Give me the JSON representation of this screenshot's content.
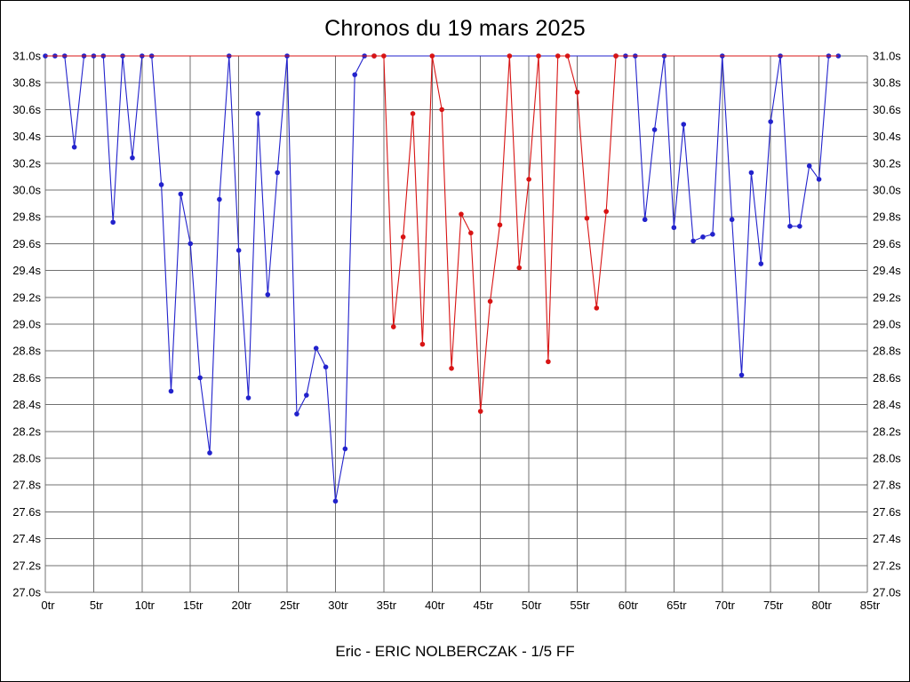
{
  "chart_data": {
    "type": "line",
    "title": "Chronos du 19 mars 2025",
    "subtitle": "Eric - ERIC NOLBERCZAK - 1/5 FF",
    "xlabel": "",
    "ylabel": "",
    "x_unit": "tr",
    "y_unit": "s",
    "xlim": [
      0,
      85
    ],
    "ylim": [
      27.0,
      31.0
    ],
    "grid": true,
    "legend": "none",
    "colors": {
      "grid": "#707070",
      "text": "#000000",
      "blue_series": "#2222cc",
      "red_series": "#d81414"
    },
    "x_ticks": [
      "0tr",
      "5tr",
      "10tr",
      "15tr",
      "20tr",
      "25tr",
      "30tr",
      "35tr",
      "40tr",
      "45tr",
      "50tr",
      "55tr",
      "60tr",
      "65tr",
      "70tr",
      "75tr",
      "80tr",
      "85tr"
    ],
    "y_ticks": [
      "31.0s",
      "30.8s",
      "30.6s",
      "30.4s",
      "30.2s",
      "30.0s",
      "29.8s",
      "29.6s",
      "29.4s",
      "29.2s",
      "29.0s",
      "28.8s",
      "28.6s",
      "28.4s",
      "28.2s",
      "28.0s",
      "27.8s",
      "27.6s",
      "27.4s",
      "27.2s",
      "27.0s"
    ],
    "series": [
      {
        "name": "blue",
        "color": "#2222cc",
        "x_start": 0,
        "marker_windows": [
          [
            0,
            34
          ],
          [
            59,
            82
          ]
        ],
        "values": [
          31,
          31,
          31,
          30.32,
          31,
          31,
          31,
          29.76,
          31,
          30.24,
          31,
          31,
          30.04,
          28.5,
          29.97,
          29.6,
          28.6,
          28.04,
          29.93,
          31,
          29.55,
          28.45,
          30.57,
          29.22,
          30.13,
          31,
          28.33,
          28.47,
          28.82,
          28.68,
          27.68,
          28.07,
          30.86,
          31,
          31,
          31,
          31,
          31,
          31,
          31,
          31,
          31,
          31,
          31,
          31,
          31,
          31,
          31,
          31,
          31,
          31,
          31,
          31,
          31,
          31,
          31,
          31,
          31,
          31,
          31,
          31,
          31,
          29.78,
          30.45,
          31,
          29.72,
          30.49,
          29.62,
          29.65,
          29.67,
          31,
          29.78,
          28.62,
          30.13,
          29.45,
          30.51,
          31,
          29.73,
          29.73,
          30.18,
          30.08,
          31,
          31
        ]
      },
      {
        "name": "red",
        "color": "#d81414",
        "x_start": 0,
        "marker_windows": [
          [
            34,
            59
          ]
        ],
        "values": [
          31,
          31,
          31,
          31,
          31,
          31,
          31,
          31,
          31,
          31,
          31,
          31,
          31,
          31,
          31,
          31,
          31,
          31,
          31,
          31,
          31,
          31,
          31,
          31,
          31,
          31,
          31,
          31,
          31,
          31,
          31,
          31,
          31,
          31,
          31,
          31,
          28.98,
          29.65,
          30.57,
          28.85,
          31,
          30.6,
          28.67,
          29.82,
          29.68,
          28.35,
          29.17,
          29.74,
          31,
          29.42,
          30.08,
          31,
          28.72,
          31,
          31,
          30.73,
          29.79,
          29.12,
          29.84,
          31,
          31,
          31,
          31,
          31,
          31,
          31,
          31,
          31,
          31,
          31,
          31,
          31,
          31,
          31,
          31,
          31,
          31,
          31,
          31,
          31,
          31,
          31,
          31
        ]
      }
    ]
  }
}
